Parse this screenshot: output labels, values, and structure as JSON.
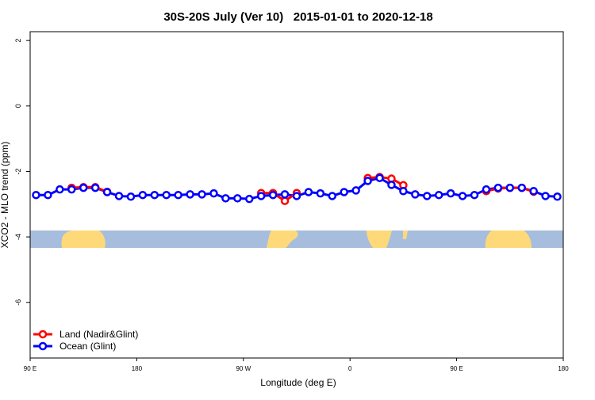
{
  "chart_data": {
    "type": "line",
    "title": "30S-20S July (Ver 10)   2015-01-01 to 2020-12-18",
    "xlabel": "Longitude (deg E)",
    "ylabel": "XCO2 - MLO trend (ppm)",
    "x": [
      95,
      105,
      115,
      125,
      135,
      145,
      155,
      165,
      175,
      185,
      195,
      205,
      215,
      225,
      235,
      245,
      255,
      265,
      275,
      285,
      295,
      305,
      315,
      325,
      335,
      345,
      355,
      365,
      375,
      385,
      395,
      405,
      415,
      425,
      435,
      445,
      455,
      465,
      475,
      485,
      495,
      505,
      515,
      525,
      535
    ],
    "series": [
      {
        "name": "Land (Nadir&Glint)",
        "color": "#ff0000",
        "values": [
          null,
          null,
          null,
          -2.5,
          -2.48,
          -2.48,
          -2.62,
          null,
          null,
          null,
          null,
          null,
          null,
          null,
          null,
          null,
          null,
          null,
          null,
          -2.66,
          -2.66,
          -2.9,
          -2.66,
          null,
          null,
          null,
          null,
          null,
          -2.2,
          -2.17,
          -2.22,
          -2.42,
          null,
          null,
          null,
          null,
          null,
          null,
          -2.6,
          -2.52,
          -2.5,
          -2.5,
          -2.62,
          null,
          null
        ]
      },
      {
        "name": "Ocean (Glint)",
        "color": "#0000ff",
        "values": [
          -2.72,
          -2.72,
          -2.55,
          -2.55,
          -2.5,
          -2.5,
          -2.63,
          -2.75,
          -2.77,
          -2.72,
          -2.72,
          -2.72,
          -2.72,
          -2.7,
          -2.7,
          -2.67,
          -2.82,
          -2.82,
          -2.84,
          -2.75,
          -2.72,
          -2.7,
          -2.75,
          -2.63,
          -2.67,
          -2.75,
          -2.63,
          -2.58,
          -2.29,
          -2.2,
          -2.41,
          -2.6,
          -2.7,
          -2.75,
          -2.72,
          -2.67,
          -2.75,
          -2.72,
          -2.55,
          -2.5,
          -2.5,
          -2.5,
          -2.6,
          -2.75,
          -2.77
        ]
      }
    ],
    "xlim": [
      90,
      540
    ],
    "xticks": [
      {
        "value": 90,
        "label": "90 E"
      },
      180,
      {
        "value": 270,
        "label": "90 W"
      },
      {
        "value": 360,
        "label": "0"
      },
      {
        "value": 450,
        "label": "90 E"
      },
      {
        "value": 540,
        "label": "180"
      }
    ],
    "ylim": [
      -7.7,
      2.27
    ],
    "yticks": [
      -6,
      -4,
      -2,
      0,
      2
    ],
    "legend": "bottom-left"
  }
}
